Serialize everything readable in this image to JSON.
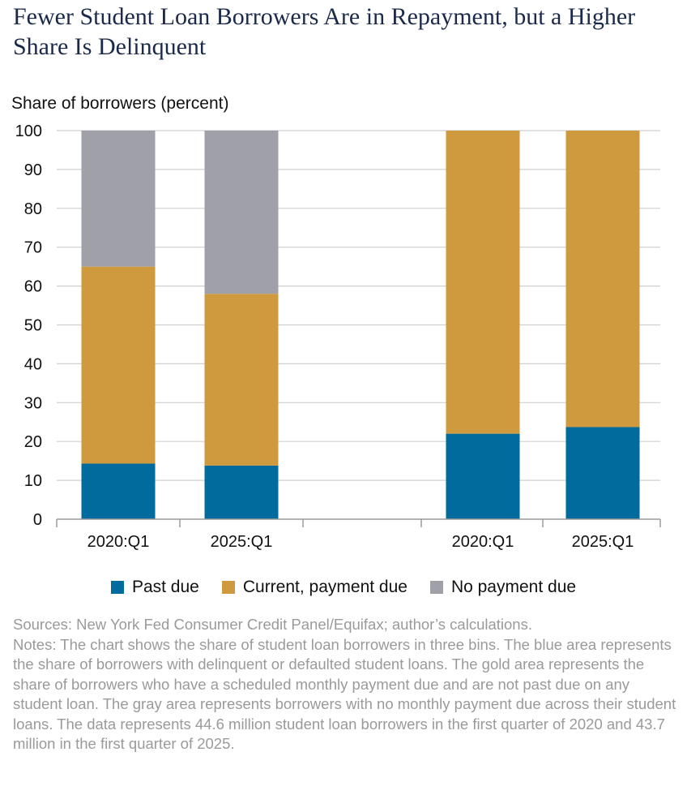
{
  "chart_data": {
    "type": "bar",
    "stacked": true,
    "title": "Fewer Student Loan Borrowers Are in Repayment, but a Higher Share Is Delinquent",
    "ylabel": "Share of borrowers (percent)",
    "ylim": [
      0,
      100
    ],
    "yticks": [
      0,
      10,
      20,
      30,
      40,
      50,
      60,
      70,
      80,
      90,
      100
    ],
    "grid": true,
    "legend_position": "bottom",
    "groups": [
      {
        "categories": [
          "2020:Q1",
          "2025:Q1"
        ],
        "series": [
          {
            "name": "Past due",
            "values": [
              14.3,
              13.8
            ]
          },
          {
            "name": "Current, payment due",
            "values": [
              50.7,
              44.2
            ]
          },
          {
            "name": "No payment due",
            "values": [
              35.0,
              42.0
            ]
          }
        ]
      },
      {
        "categories": [
          "2020:Q1",
          "2025:Q1"
        ],
        "series": [
          {
            "name": "Past due",
            "values": [
              22.0,
              23.7
            ]
          },
          {
            "name": "Current, payment due",
            "values": [
              78.0,
              76.3
            ]
          }
        ]
      }
    ],
    "legend": [
      {
        "name": "Past due",
        "color": "#006b9c"
      },
      {
        "name": "Current, payment due",
        "color": "#cf9a3e"
      },
      {
        "name": "No payment due",
        "color": "#a0a0a8"
      }
    ],
    "colors": {
      "Past due": "#006b9c",
      "Current, payment due": "#cf9a3e",
      "No payment due": "#a0a0a8"
    }
  },
  "sources": "Sources: New York Fed Consumer Credit Panel/Equifax; author’s calculations.",
  "notes": "Notes: The chart shows the share of student loan borrowers in three bins. The blue area represents the share of borrowers with delinquent or defaulted student loans. The gold area represents the share of borrowers who have a scheduled monthly payment due and are not past due on any student loan. The gray area represents borrowers with no monthly payment due across their student loans. The data represents 44.6 million student loan borrowers in the first quarter of 2020 and 43.7 million in the first quarter of 2025."
}
